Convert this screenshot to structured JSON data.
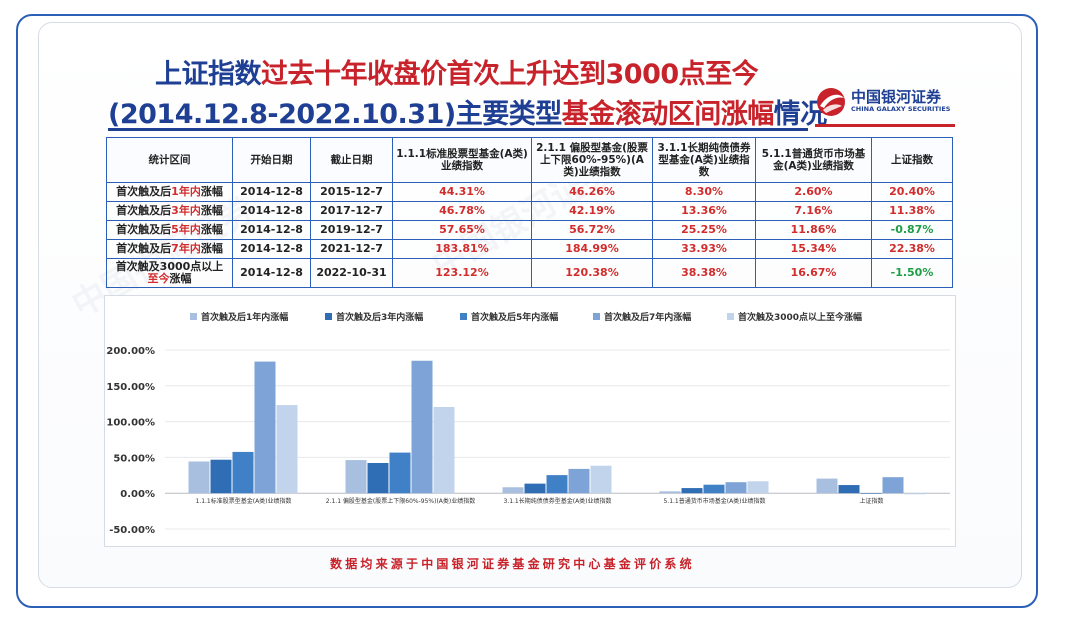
{
  "title": {
    "line1_part1": "上证指数",
    "line1_part2": "过去十年收盘价首次上升达到3000点至今",
    "line2_part1": "(2014.12.8-2022.10.31)主要类型",
    "line2_part2": "基金滚动区间涨幅",
    "line2_part3": "情况"
  },
  "logo": {
    "name": "中国银河证券",
    "english": "CHINA GALAXY SECURITIES"
  },
  "table": {
    "headers": [
      "统计区间",
      "开始日期",
      "截止日期",
      "1.1.1标准股票型基金(A类)业绩指数",
      "2.1.1 偏股型基金(股票上下限60%-95%)(A类)业绩指数",
      "3.1.1长期纯债债券型基金(A类)业绩指数",
      "5.1.1普通货币市场基金(A类)业绩指数",
      "上证指数"
    ],
    "rows": [
      {
        "pre": "首次触及后",
        "hl": "1年内",
        "post": "涨幅",
        "start": "2014-12-8",
        "end": "2015-12-7",
        "v1": "44.31%",
        "v2": "46.26%",
        "v3": "8.30%",
        "v4": "2.60%",
        "v5": "20.40%"
      },
      {
        "pre": "首次触及后",
        "hl": "3年内",
        "post": "涨幅",
        "start": "2014-12-8",
        "end": "2017-12-7",
        "v1": "46.78%",
        "v2": "42.19%",
        "v3": "13.36%",
        "v4": "7.16%",
        "v5": "11.38%"
      },
      {
        "pre": "首次触及后",
        "hl": "5年内",
        "post": "涨幅",
        "start": "2014-12-8",
        "end": "2019-12-7",
        "v1": "57.65%",
        "v2": "56.72%",
        "v3": "25.25%",
        "v4": "11.86%",
        "v5": "-0.87%"
      },
      {
        "pre": "首次触及后",
        "hl": "7年内",
        "post": "涨幅",
        "start": "2014-12-8",
        "end": "2021-12-7",
        "v1": "183.81%",
        "v2": "184.99%",
        "v3": "33.93%",
        "v4": "15.34%",
        "v5": "22.38%"
      },
      {
        "pre": "首次触及3000点以上",
        "hl": "至今",
        "post": "涨幅",
        "start": "2014-12-8",
        "end": "2022-10-31",
        "v1": "123.12%",
        "v2": "120.38%",
        "v3": "38.38%",
        "v4": "16.67%",
        "v5": "-1.50%"
      }
    ]
  },
  "colors": {
    "title_blue": "#1e3f93",
    "title_red": "#c8222a",
    "positive_red": "#d22d2d",
    "negative_green": "#1e9e45",
    "border_blue": "#2c5fb8"
  },
  "chart_data": {
    "type": "bar",
    "categories": [
      "1.1.1标准股票型基金(A类)业绩指数",
      "2.1.1 偏股型基金(股票上下限60%-95%)(A类)业绩指数",
      "3.1.1长期纯债债券型基金(A类)业绩指数",
      "5.1.1普通货币市场基金(A类)业绩指数",
      "上证指数"
    ],
    "series": [
      {
        "name": "首次触及后1年内涨幅",
        "color": "#a9bfe0",
        "values": [
          44.31,
          46.26,
          8.3,
          2.6,
          20.4
        ]
      },
      {
        "name": "首次触及后3年内涨幅",
        "color": "#2f6db5",
        "values": [
          46.78,
          42.19,
          13.36,
          7.16,
          11.38
        ]
      },
      {
        "name": "首次触及后5年内涨幅",
        "color": "#3f80c6",
        "values": [
          57.65,
          56.72,
          25.25,
          11.86,
          -0.87
        ]
      },
      {
        "name": "首次触及后7年内涨幅",
        "color": "#7ea3d6",
        "values": [
          183.81,
          184.99,
          33.93,
          15.34,
          22.38
        ]
      },
      {
        "name": "首次触及3000点以上至今涨幅",
        "color": "#c2d3ec",
        "values": [
          123.12,
          120.38,
          38.38,
          16.67,
          -1.5
        ]
      }
    ],
    "yticks": [
      "200.00%",
      "150.00%",
      "100.00%",
      "50.00%",
      "0.00%",
      "-50.00%"
    ],
    "ylim": [
      -50,
      200
    ],
    "grid": true,
    "legend": "top"
  },
  "footer": "数据均来源于中国银河证券基金研究中心基金评价系统"
}
